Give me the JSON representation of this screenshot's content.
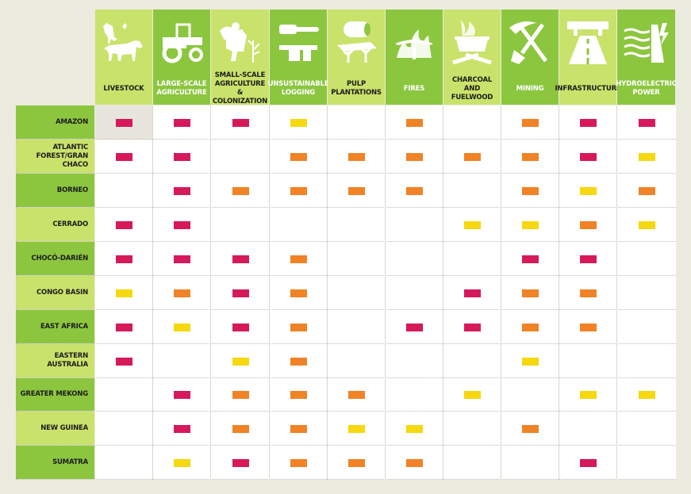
{
  "chart_data": {
    "type": "table",
    "colors": {
      "high": "#d6195b",
      "medium": "#ef8326",
      "low": "#f5d80f"
    },
    "columns": [
      {
        "label": "LIVESTOCK",
        "icon": "livestock-icon"
      },
      {
        "label": "LARGE-SCALE AGRICULTURE",
        "icon": "tractor-icon"
      },
      {
        "label": "SMALL-SCALE AGRICULTURE & COLONIZATION",
        "icon": "farmer-icon"
      },
      {
        "label": "UNSUSTAINABLE LOGGING",
        "icon": "chainsaw-icon"
      },
      {
        "label": "PULP PLANTATIONS",
        "icon": "paper-roll-icon"
      },
      {
        "label": "FIRES",
        "icon": "fire-icon"
      },
      {
        "label": "CHARCOAL AND FUELWOOD",
        "icon": "charcoal-pot-icon"
      },
      {
        "label": "MINING",
        "icon": "pickaxe-shovel-icon"
      },
      {
        "label": "INFRASTRUCTURE",
        "icon": "highway-icon"
      },
      {
        "label": "HYDROELECTRIC POWER",
        "icon": "dam-icon"
      }
    ],
    "rows": [
      {
        "label": "AMAZON",
        "values": [
          "high",
          "high",
          "high",
          "low",
          "",
          "medium",
          "",
          "medium",
          "high",
          "high"
        ]
      },
      {
        "label": "ATLANTIC FOREST/GRAN CHACO",
        "values": [
          "high",
          "high",
          "",
          "medium",
          "medium",
          "medium",
          "medium",
          "medium",
          "high",
          "low"
        ]
      },
      {
        "label": "BORNEO",
        "values": [
          "",
          "high",
          "medium",
          "medium",
          "medium",
          "medium",
          "",
          "medium",
          "low",
          "medium"
        ]
      },
      {
        "label": "CERRADO",
        "values": [
          "high",
          "high",
          "",
          "",
          "",
          "",
          "low",
          "low",
          "medium",
          "low"
        ]
      },
      {
        "label": "CHOCÓ-DARIÉN",
        "values": [
          "high",
          "high",
          "high",
          "medium",
          "",
          "",
          "",
          "high",
          "high",
          ""
        ]
      },
      {
        "label": "CONGO BASIN",
        "values": [
          "low",
          "medium",
          "high",
          "medium",
          "",
          "",
          "high",
          "medium",
          "medium",
          ""
        ]
      },
      {
        "label": "EAST AFRICA",
        "values": [
          "high",
          "low",
          "high",
          "medium",
          "",
          "high",
          "high",
          "medium",
          "medium",
          ""
        ]
      },
      {
        "label": "EASTERN AUSTRALIA",
        "values": [
          "high",
          "",
          "low",
          "medium",
          "",
          "",
          "",
          "low",
          "",
          ""
        ]
      },
      {
        "label": "GREATER MEKONG",
        "values": [
          "",
          "high",
          "medium",
          "medium",
          "medium",
          "",
          "low",
          "",
          "low",
          "low"
        ]
      },
      {
        "label": "NEW GUINEA",
        "values": [
          "",
          "high",
          "medium",
          "medium",
          "low",
          "low",
          "",
          "medium",
          "",
          ""
        ]
      },
      {
        "label": "SUMATRA",
        "values": [
          "",
          "low",
          "high",
          "medium",
          "medium",
          "medium",
          "",
          "",
          "high",
          ""
        ]
      }
    ]
  }
}
